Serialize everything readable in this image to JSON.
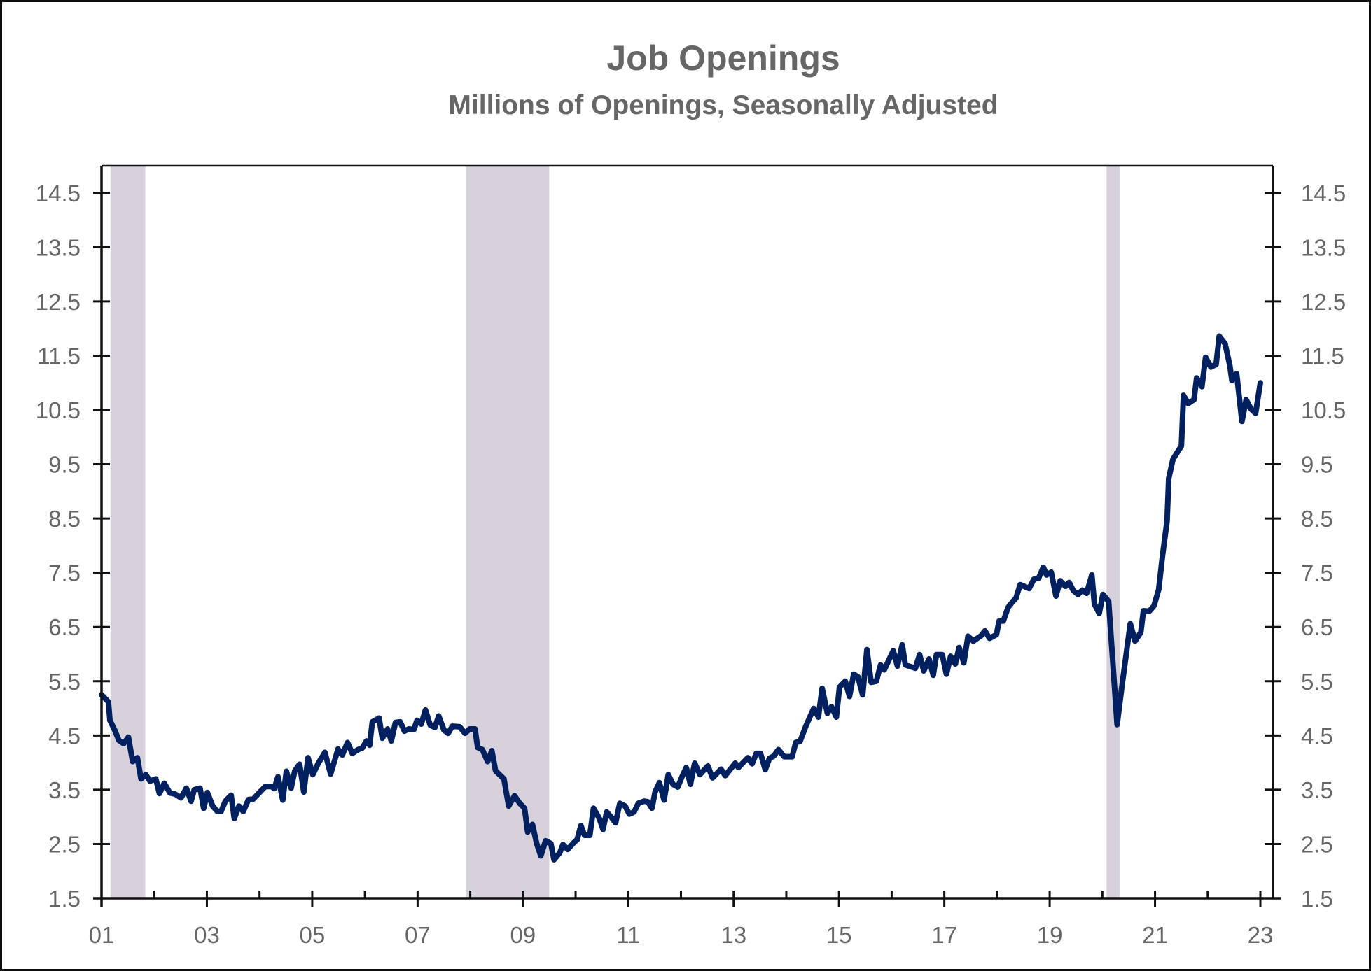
{
  "chart_data": {
    "type": "line",
    "title": "Job Openings",
    "subtitle": "Millions of Openings, Seasonally Adjusted",
    "xlabel": "",
    "ylabel": "",
    "xlim": [
      2001,
      2023
    ],
    "ylim": [
      1.5,
      15.0
    ],
    "grid": false,
    "legend": "none",
    "yticks": [
      "1.5",
      "2.5",
      "3.5",
      "4.5",
      "5.5",
      "6.5",
      "7.5",
      "8.5",
      "9.5",
      "10.5",
      "11.5",
      "12.5",
      "13.5",
      "14.5"
    ],
    "xtick_labels": [
      "01",
      "03",
      "05",
      "07",
      "09",
      "11",
      "13",
      "15",
      "17",
      "19",
      "21",
      "23"
    ],
    "colors": {
      "line": "#002060",
      "recession": "#D6D1DA",
      "axis": "#111111",
      "text": "#666666"
    },
    "recessions": [
      [
        2001.17,
        2001.83
      ],
      [
        2007.92,
        2009.5
      ],
      [
        2020.08,
        2020.33
      ]
    ],
    "series": [
      {
        "name": "Job Openings",
        "x": [
          2001.0,
          2001.13,
          2001.16,
          2001.25,
          2001.33,
          2001.42,
          2001.51,
          2001.59,
          2001.68,
          2001.75,
          2001.84,
          2001.92,
          2002.03,
          2002.1,
          2002.19,
          2002.3,
          2002.4,
          2002.51,
          2002.61,
          2002.7,
          2002.76,
          2002.87,
          2002.94,
          2003.01,
          2003.11,
          2003.2,
          2003.27,
          2003.35,
          2003.46,
          2003.52,
          2003.61,
          2003.69,
          2003.79,
          2003.88,
          2003.99,
          2004.11,
          2004.23,
          2004.28,
          2004.35,
          2004.44,
          2004.51,
          2004.6,
          2004.67,
          2004.76,
          2004.84,
          2004.92,
          2005.01,
          2005.11,
          2005.24,
          2005.35,
          2005.49,
          2005.57,
          2005.67,
          2005.76,
          2005.87,
          2005.95,
          2006.03,
          2006.09,
          2006.14,
          2006.27,
          2006.33,
          2006.43,
          2006.5,
          2006.58,
          2006.67,
          2006.75,
          2006.83,
          2006.93,
          2006.99,
          2007.07,
          2007.15,
          2007.24,
          2007.33,
          2007.4,
          2007.5,
          2007.58,
          2007.66,
          2007.8,
          2007.9,
          2007.99,
          2008.09,
          2008.14,
          2008.23,
          2008.33,
          2008.41,
          2008.48,
          2008.64,
          2008.73,
          2008.84,
          2008.94,
          2009.03,
          2009.09,
          2009.18,
          2009.26,
          2009.34,
          2009.43,
          2009.53,
          2009.59,
          2009.7,
          2009.76,
          2009.85,
          2009.97,
          2010.03,
          2010.1,
          2010.17,
          2010.27,
          2010.34,
          2010.45,
          2010.52,
          2010.59,
          2010.68,
          2010.76,
          2010.84,
          2010.94,
          2011.02,
          2011.11,
          2011.19,
          2011.3,
          2011.37,
          2011.45,
          2011.51,
          2011.59,
          2011.68,
          2011.76,
          2011.85,
          2011.94,
          2012.02,
          2012.1,
          2012.18,
          2012.26,
          2012.36,
          2012.51,
          2012.6,
          2012.76,
          2012.84,
          2013.03,
          2013.09,
          2013.27,
          2013.35,
          2013.43,
          2013.51,
          2013.6,
          2013.68,
          2013.76,
          2013.85,
          2013.96,
          2014.11,
          2014.18,
          2014.26,
          2014.37,
          2014.52,
          2014.61,
          2014.68,
          2014.78,
          2014.86,
          2014.95,
          2015.01,
          2015.12,
          2015.2,
          2015.28,
          2015.36,
          2015.45,
          2015.53,
          2015.61,
          2015.71,
          2015.79,
          2015.86,
          2016.03,
          2016.11,
          2016.2,
          2016.26,
          2016.45,
          2016.53,
          2016.61,
          2016.71,
          2016.79,
          2016.85,
          2016.96,
          2017.04,
          2017.12,
          2017.21,
          2017.28,
          2017.37,
          2017.45,
          2017.55,
          2017.7,
          2017.77,
          2017.86,
          2017.99,
          2018.04,
          2018.12,
          2018.21,
          2018.3,
          2018.36,
          2018.44,
          2018.61,
          2018.7,
          2018.79,
          2018.88,
          2018.94,
          2019.03,
          2019.12,
          2019.2,
          2019.3,
          2019.37,
          2019.45,
          2019.54,
          2019.62,
          2019.7,
          2019.8,
          2019.85,
          2019.94,
          2020.01,
          2020.12,
          2020.28,
          2020.37,
          2020.53,
          2020.62,
          2020.73,
          2020.78,
          2020.89,
          2020.98,
          2021.07,
          2021.14,
          2021.23,
          2021.26,
          2021.34,
          2021.5,
          2021.54,
          2021.63,
          2021.74,
          2021.79,
          2021.89,
          2021.96,
          2022.06,
          2022.16,
          2022.22,
          2022.33,
          2022.42,
          2022.46,
          2022.55,
          2022.65,
          2022.73,
          2022.82,
          2022.91,
          2023.0
        ],
        "values": [
          5.25,
          5.12,
          4.78,
          4.6,
          4.41,
          4.35,
          4.47,
          4.02,
          4.09,
          3.7,
          3.78,
          3.66,
          3.7,
          3.43,
          3.62,
          3.44,
          3.42,
          3.35,
          3.53,
          3.29,
          3.5,
          3.53,
          3.16,
          3.45,
          3.2,
          3.1,
          3.1,
          3.29,
          3.4,
          2.97,
          3.2,
          3.1,
          3.32,
          3.33,
          3.44,
          3.56,
          3.56,
          3.52,
          3.74,
          3.31,
          3.84,
          3.53,
          3.85,
          3.97,
          3.46,
          4.09,
          3.78,
          3.98,
          4.19,
          3.79,
          4.25,
          4.14,
          4.37,
          4.17,
          4.24,
          4.27,
          4.4,
          4.32,
          4.75,
          4.82,
          4.45,
          4.62,
          4.4,
          4.74,
          4.75,
          4.58,
          4.62,
          4.61,
          4.78,
          4.71,
          4.97,
          4.69,
          4.65,
          4.86,
          4.6,
          4.54,
          4.67,
          4.66,
          4.54,
          4.62,
          4.62,
          4.28,
          4.24,
          4.02,
          4.22,
          3.85,
          3.7,
          3.2,
          3.39,
          3.25,
          3.16,
          2.72,
          2.86,
          2.51,
          2.28,
          2.56,
          2.51,
          2.21,
          2.34,
          2.49,
          2.4,
          2.53,
          2.58,
          2.84,
          2.66,
          2.66,
          3.16,
          2.97,
          2.77,
          3.09,
          2.99,
          2.89,
          3.25,
          3.2,
          3.05,
          3.09,
          3.25,
          3.29,
          3.28,
          3.16,
          3.46,
          3.63,
          3.31,
          3.78,
          3.6,
          3.55,
          3.74,
          3.91,
          3.6,
          3.99,
          3.78,
          3.94,
          3.72,
          3.88,
          3.76,
          3.99,
          3.91,
          4.09,
          3.98,
          4.17,
          4.17,
          3.87,
          4.08,
          4.12,
          4.24,
          4.11,
          4.11,
          4.37,
          4.39,
          4.67,
          5.0,
          4.84,
          5.37,
          4.91,
          5.03,
          4.84,
          5.39,
          5.5,
          5.22,
          5.63,
          5.58,
          5.25,
          6.08,
          5.48,
          5.5,
          5.8,
          5.71,
          6.06,
          5.78,
          6.17,
          5.8,
          5.74,
          5.99,
          5.69,
          5.91,
          5.61,
          5.99,
          5.99,
          5.63,
          5.96,
          5.82,
          6.12,
          5.84,
          6.33,
          6.24,
          6.34,
          6.43,
          6.29,
          6.36,
          6.61,
          6.61,
          6.86,
          6.97,
          7.03,
          7.28,
          7.21,
          7.38,
          7.4,
          7.6,
          7.46,
          7.51,
          7.07,
          7.35,
          7.25,
          7.32,
          7.17,
          7.1,
          7.18,
          7.12,
          7.46,
          6.92,
          6.75,
          7.1,
          6.97,
          4.7,
          5.4,
          6.56,
          6.24,
          6.4,
          6.8,
          6.79,
          6.89,
          7.19,
          7.8,
          8.46,
          9.24,
          9.59,
          9.84,
          10.77,
          10.62,
          10.69,
          11.09,
          10.93,
          11.47,
          11.29,
          11.34,
          11.86,
          11.72,
          11.32,
          11.04,
          11.17,
          10.29,
          10.69,
          10.52,
          10.44,
          11.0
        ]
      }
    ]
  }
}
